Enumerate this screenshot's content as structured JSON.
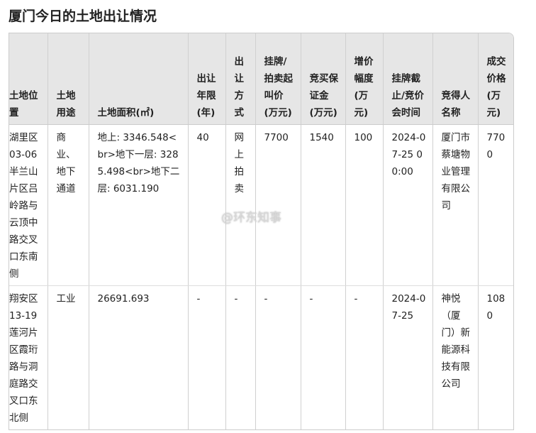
{
  "title": "厦门今日的土地出让情况",
  "headers": [
    "土地位置",
    "土地用途",
    "土地面积(㎡)",
    "出让年限(年)",
    "出让方式",
    "挂牌/拍卖起叫价(万元)",
    "竞买保证金(万元)",
    "增价幅度(万元)",
    "挂牌截止/竞价会时间",
    "竞得人名称",
    "成交价格(万元)"
  ],
  "rows": [
    [
      "湖里区03-06半兰山片区吕岭路与云顶中路交叉口东南侧",
      "商业、地下通道",
      "地上: 3346.548<br>地下一层: 3285.498<br>地下二层: 6031.190",
      "40",
      "网上拍卖",
      "7700",
      "1540",
      "100",
      "2024-07-25 00:00",
      "厦门市蔡塘物业管理有限公司",
      "7700"
    ],
    [
      "翔安区13-19莲河片区霞珩路与洞庭路交叉口东北侧",
      "工业",
      "26691.693",
      "-",
      "-",
      "-",
      "-",
      "-",
      "2024-07-25",
      "神悦（厦门）新能源科技有限公司",
      "1080"
    ]
  ],
  "watermark": "@环东知事"
}
